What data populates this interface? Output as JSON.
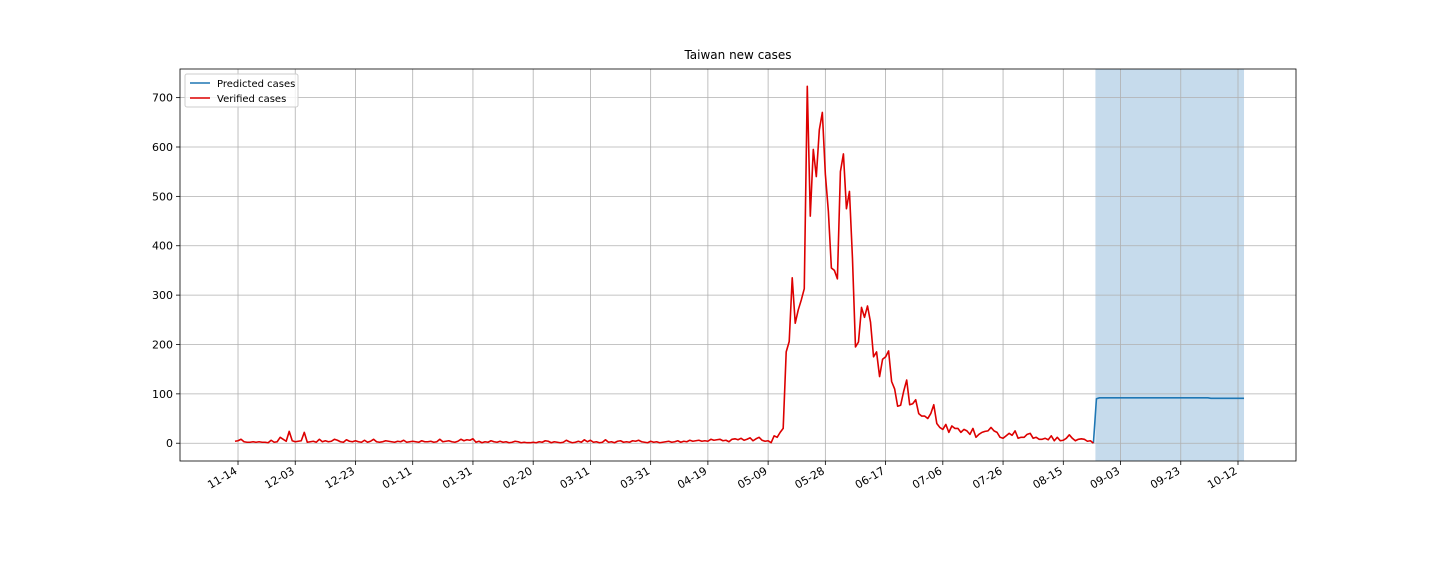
{
  "chart_data": {
    "type": "line",
    "title": "Taiwan new cases",
    "x": [
      "11-13",
      "11-14",
      "11-15",
      "11-16",
      "11-17",
      "11-18",
      "11-19",
      "11-20",
      "11-21",
      "11-22",
      "11-23",
      "11-24",
      "11-25",
      "11-26",
      "11-27",
      "11-28",
      "11-29",
      "11-30",
      "12-01",
      "12-02",
      "12-03",
      "12-04",
      "12-05",
      "12-06",
      "12-07",
      "12-08",
      "12-09",
      "12-10",
      "12-11",
      "12-12",
      "12-13",
      "12-14",
      "12-15",
      "12-16",
      "12-17",
      "12-18",
      "12-19",
      "12-20",
      "12-21",
      "12-22",
      "12-23",
      "12-24",
      "12-25",
      "12-26",
      "12-27",
      "12-28",
      "12-29",
      "12-30",
      "12-31",
      "01-01",
      "01-02",
      "01-03",
      "01-04",
      "01-05",
      "01-06",
      "01-07",
      "01-08",
      "01-09",
      "01-10",
      "01-11",
      "01-12",
      "01-13",
      "01-14",
      "01-15",
      "01-16",
      "01-17",
      "01-18",
      "01-19",
      "01-20",
      "01-21",
      "01-22",
      "01-23",
      "01-24",
      "01-25",
      "01-26",
      "01-27",
      "01-28",
      "01-29",
      "01-30",
      "01-31",
      "02-01",
      "02-02",
      "02-03",
      "02-04",
      "02-05",
      "02-06",
      "02-07",
      "02-08",
      "02-09",
      "02-10",
      "02-11",
      "02-12",
      "02-13",
      "02-14",
      "02-15",
      "02-16",
      "02-17",
      "02-18",
      "02-19",
      "02-20",
      "02-21",
      "02-22",
      "02-23",
      "02-24",
      "02-25",
      "02-26",
      "02-27",
      "02-28",
      "03-01",
      "03-02",
      "03-03",
      "03-04",
      "03-05",
      "03-06",
      "03-07",
      "03-08",
      "03-09",
      "03-10",
      "03-11",
      "03-12",
      "03-13",
      "03-14",
      "03-15",
      "03-16",
      "03-17",
      "03-18",
      "03-19",
      "03-20",
      "03-21",
      "03-22",
      "03-23",
      "03-24",
      "03-25",
      "03-26",
      "03-27",
      "03-28",
      "03-29",
      "03-30",
      "03-31",
      "04-01",
      "04-02",
      "04-03",
      "04-04",
      "04-05",
      "04-06",
      "04-07",
      "04-08",
      "04-09",
      "04-10",
      "04-11",
      "04-12",
      "04-13",
      "04-14",
      "04-15",
      "04-16",
      "04-17",
      "04-18",
      "04-19",
      "04-20",
      "04-21",
      "04-22",
      "04-23",
      "04-24",
      "04-25",
      "04-26",
      "04-27",
      "04-28",
      "04-29",
      "04-30",
      "05-01",
      "05-02",
      "05-03",
      "05-04",
      "05-05",
      "05-06",
      "05-07",
      "05-08",
      "05-09",
      "05-10",
      "05-11",
      "05-12",
      "05-13",
      "05-14",
      "05-15",
      "05-16",
      "05-17",
      "05-18",
      "05-19",
      "05-20",
      "05-21",
      "05-22",
      "05-23",
      "05-24",
      "05-25",
      "05-26",
      "05-27",
      "05-28",
      "05-29",
      "05-30",
      "05-31",
      "06-01",
      "06-02",
      "06-03",
      "06-04",
      "06-05",
      "06-06",
      "06-07",
      "06-08",
      "06-09",
      "06-10",
      "06-11",
      "06-12",
      "06-13",
      "06-14",
      "06-15",
      "06-16",
      "06-17",
      "06-18",
      "06-19",
      "06-20",
      "06-21",
      "06-22",
      "06-23",
      "06-24",
      "06-25",
      "06-26",
      "06-27",
      "06-28",
      "06-29",
      "06-30",
      "07-01",
      "07-02",
      "07-03",
      "07-04",
      "07-05",
      "07-06",
      "07-07",
      "07-08",
      "07-09",
      "07-10",
      "07-11",
      "07-12",
      "07-13",
      "07-14",
      "07-15",
      "07-16",
      "07-17",
      "07-18",
      "07-19",
      "07-20",
      "07-21",
      "07-22",
      "07-23",
      "07-24",
      "07-25",
      "07-26",
      "07-27",
      "07-28",
      "07-29",
      "07-30",
      "07-31",
      "08-01",
      "08-02",
      "08-03",
      "08-04",
      "08-05",
      "08-06",
      "08-07",
      "08-08",
      "08-09",
      "08-10",
      "08-11",
      "08-12",
      "08-13",
      "08-14",
      "08-15",
      "08-16",
      "08-17",
      "08-18",
      "08-19",
      "08-20",
      "08-21",
      "08-22",
      "08-23",
      "08-24",
      "08-25",
      "08-26",
      "08-27",
      "08-28",
      "08-29",
      "08-30",
      "08-31",
      "09-01",
      "09-02",
      "09-03",
      "09-04",
      "09-05",
      "09-06",
      "09-07",
      "09-08",
      "09-09",
      "09-10",
      "09-11",
      "09-12",
      "09-13",
      "09-14",
      "09-15",
      "09-16",
      "09-17",
      "09-18",
      "09-19",
      "09-20",
      "09-21",
      "09-22",
      "09-23",
      "09-24",
      "09-25",
      "09-26",
      "09-27",
      "09-28",
      "09-29",
      "09-30",
      "10-01",
      "10-02",
      "10-03",
      "10-04",
      "10-05",
      "10-06",
      "10-07",
      "10-08",
      "10-09",
      "10-10",
      "10-11",
      "10-12",
      "10-13",
      "10-14"
    ],
    "series": [
      {
        "name": "Predicted cases",
        "color": "#1f77b4",
        "values": [
          null,
          null,
          null,
          null,
          null,
          null,
          null,
          null,
          null,
          null,
          null,
          null,
          null,
          null,
          null,
          null,
          null,
          null,
          null,
          null,
          null,
          null,
          null,
          null,
          null,
          null,
          null,
          null,
          null,
          null,
          null,
          null,
          null,
          null,
          null,
          null,
          null,
          null,
          null,
          null,
          null,
          null,
          null,
          null,
          null,
          null,
          null,
          null,
          null,
          null,
          null,
          null,
          null,
          null,
          null,
          null,
          null,
          null,
          null,
          null,
          null,
          null,
          null,
          null,
          null,
          null,
          null,
          null,
          null,
          null,
          null,
          null,
          null,
          null,
          null,
          null,
          null,
          null,
          null,
          null,
          null,
          null,
          null,
          null,
          null,
          null,
          null,
          null,
          null,
          null,
          null,
          null,
          null,
          null,
          null,
          null,
          null,
          null,
          null,
          null,
          null,
          null,
          null,
          null,
          null,
          null,
          null,
          null,
          null,
          null,
          null,
          null,
          null,
          null,
          null,
          null,
          null,
          null,
          null,
          null,
          null,
          null,
          null,
          null,
          null,
          null,
          null,
          null,
          null,
          null,
          null,
          null,
          null,
          null,
          null,
          null,
          null,
          null,
          null,
          null,
          null,
          null,
          null,
          null,
          null,
          null,
          null,
          null,
          null,
          null,
          null,
          null,
          null,
          null,
          null,
          null,
          null,
          null,
          null,
          null,
          null,
          null,
          null,
          null,
          null,
          null,
          null,
          null,
          null,
          null,
          null,
          null,
          null,
          null,
          null,
          null,
          null,
          null,
          null,
          null,
          null,
          null,
          null,
          null,
          null,
          null,
          null,
          null,
          null,
          null,
          null,
          null,
          null,
          null,
          null,
          null,
          null,
          null,
          null,
          null,
          null,
          null,
          null,
          null,
          null,
          null,
          null,
          null,
          null,
          null,
          null,
          null,
          null,
          null,
          null,
          null,
          null,
          null,
          null,
          null,
          null,
          null,
          null,
          null,
          null,
          null,
          null,
          null,
          null,
          null,
          null,
          null,
          null,
          null,
          null,
          null,
          null,
          null,
          null,
          null,
          null,
          null,
          null,
          null,
          null,
          null,
          null,
          null,
          null,
          null,
          null,
          null,
          null,
          null,
          null,
          null,
          null,
          null,
          null,
          null,
          null,
          null,
          null,
          null,
          null,
          null,
          null,
          null,
          null,
          null,
          null,
          null,
          null,
          null,
          null,
          null,
          null,
          null,
          null,
          null,
          null,
          null,
          null,
          null,
          null,
          0,
          90,
          92,
          92,
          92,
          92,
          92,
          92,
          92,
          92,
          92,
          92,
          92,
          92,
          92,
          92,
          92,
          92,
          92,
          92,
          92,
          92,
          92,
          92,
          92,
          92,
          92,
          92,
          92,
          92,
          92,
          92,
          92,
          92,
          92,
          92,
          92,
          92,
          92,
          91,
          91,
          91,
          91,
          91,
          91,
          91,
          91,
          91,
          91,
          91,
          91
        ]
      },
      {
        "name": "Verified cases",
        "color": "#dd0000",
        "values": [
          4,
          5,
          8,
          3,
          2,
          2,
          3,
          2,
          3,
          2,
          2,
          1,
          6,
          2,
          3,
          12,
          8,
          4,
          24,
          5,
          3,
          4,
          5,
          22,
          2,
          3,
          4,
          2,
          8,
          3,
          5,
          3,
          4,
          8,
          6,
          3,
          2,
          7,
          4,
          3,
          5,
          3,
          2,
          6,
          2,
          4,
          8,
          3,
          2,
          3,
          5,
          4,
          3,
          2,
          4,
          3,
          6,
          2,
          3,
          4,
          3,
          2,
          5,
          3,
          3,
          4,
          2,
          3,
          8,
          3,
          4,
          5,
          3,
          2,
          4,
          8,
          5,
          7,
          6,
          9,
          2,
          4,
          1,
          3,
          2,
          5,
          3,
          2,
          4,
          2,
          3,
          1,
          2,
          4,
          3,
          1,
          2,
          1,
          1,
          2,
          1,
          3,
          2,
          5,
          4,
          1,
          3,
          2,
          1,
          2,
          6,
          3,
          1,
          2,
          4,
          2,
          7,
          3,
          6,
          2,
          3,
          1,
          2,
          7,
          2,
          3,
          1,
          4,
          5,
          2,
          3,
          2,
          5,
          4,
          6,
          3,
          2,
          1,
          4,
          2,
          3,
          1,
          2,
          3,
          4,
          2,
          3,
          5,
          2,
          4,
          3,
          6,
          4,
          5,
          6,
          4,
          5,
          4,
          8,
          6,
          7,
          8,
          5,
          6,
          3,
          8,
          9,
          7,
          10,
          6,
          8,
          11,
          5,
          9,
          12,
          6,
          4,
          5,
          1,
          15,
          12,
          22,
          30,
          185,
          206,
          335,
          243,
          270,
          290,
          313,
          723,
          460,
          595,
          540,
          635,
          670,
          545,
          470,
          355,
          350,
          333,
          550,
          586,
          475,
          510,
          375,
          195,
          205,
          275,
          255,
          278,
          245,
          175,
          185,
          135,
          170,
          175,
          187,
          125,
          110,
          75,
          77,
          105,
          128,
          78,
          80,
          88,
          60,
          55,
          55,
          50,
          60,
          78,
          40,
          32,
          28,
          38,
          22,
          35,
          30,
          30,
          22,
          28,
          25,
          18,
          30,
          12,
          18,
          22,
          24,
          25,
          32,
          25,
          22,
          12,
          10,
          15,
          20,
          16,
          25,
          10,
          12,
          12,
          18,
          20,
          10,
          12,
          8,
          8,
          10,
          7,
          15,
          5,
          12,
          5,
          6,
          10,
          17,
          10,
          5,
          8,
          9,
          8,
          4,
          5,
          0,
          null,
          null,
          null,
          null,
          null,
          null,
          null,
          null,
          null,
          null,
          null,
          null,
          null,
          null,
          null,
          null,
          null,
          null,
          null,
          null,
          null,
          null,
          null,
          null,
          null,
          null,
          null,
          null,
          null,
          null,
          null,
          null,
          null,
          null,
          null,
          null,
          null,
          null,
          null,
          null,
          null,
          null,
          null,
          null,
          null,
          null,
          null,
          null,
          null,
          null
        ]
      }
    ],
    "highlight": {
      "from": "08-26",
      "to": "10-14",
      "color": "#c6dbec"
    },
    "ylim": [
      -36,
      758
    ],
    "yticks": [
      0,
      100,
      200,
      300,
      400,
      500,
      600,
      700
    ],
    "xticks": [
      "11-14",
      "12-03",
      "12-23",
      "01-11",
      "01-31",
      "02-20",
      "03-11",
      "03-31",
      "04-19",
      "05-09",
      "05-28",
      "06-17",
      "07-06",
      "07-26",
      "08-15",
      "09-03",
      "09-23",
      "10-12"
    ],
    "grid": true,
    "legend": "upper left"
  }
}
